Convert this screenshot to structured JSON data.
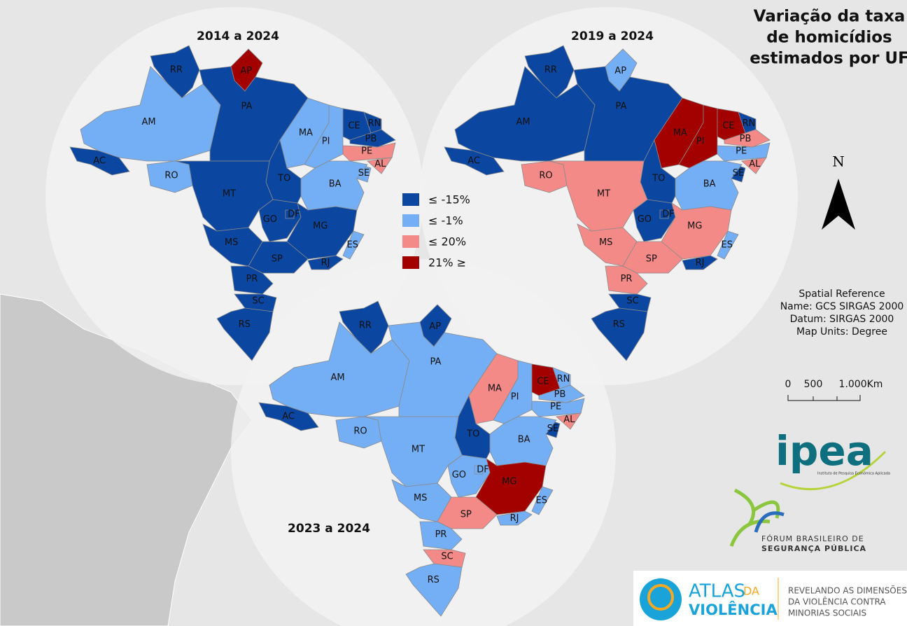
{
  "title_lines": [
    "Variação da taxa",
    "de homicídios",
    "estimados por UF"
  ],
  "legend": [
    {
      "label": "≤ -15%",
      "color": "#0b46a0"
    },
    {
      "label": "≤ -1%",
      "color": "#74aef5"
    },
    {
      "label": "≤ 20%",
      "color": "#f48a88"
    },
    {
      "label": "21% ≥",
      "color": "#a30000"
    }
  ],
  "states": [
    "RR",
    "AP",
    "AM",
    "AC",
    "PA",
    "MA",
    "PI",
    "CE",
    "RN",
    "PB",
    "PE",
    "AL",
    "SE",
    "BA",
    "TO",
    "RO",
    "MT",
    "GO",
    "DF",
    "MG",
    "ES",
    "MS",
    "SP",
    "RJ",
    "PR",
    "SC",
    "RS"
  ],
  "maps": [
    {
      "title": "2014 a 2024",
      "classes": [
        0,
        3,
        1,
        0,
        0,
        1,
        1,
        0,
        0,
        0,
        2,
        2,
        1,
        1,
        0,
        1,
        0,
        0,
        0,
        0,
        1,
        0,
        0,
        0,
        0,
        0,
        0
      ]
    },
    {
      "title": "2019 a 2024",
      "classes": [
        0,
        1,
        0,
        0,
        0,
        3,
        3,
        3,
        0,
        2,
        1,
        2,
        0,
        1,
        0,
        2,
        2,
        0,
        0,
        2,
        1,
        2,
        2,
        0,
        2,
        0,
        0
      ]
    },
    {
      "title": "2023 a 2024",
      "classes": [
        0,
        0,
        1,
        0,
        1,
        2,
        1,
        3,
        1,
        1,
        1,
        2,
        0,
        1,
        0,
        1,
        1,
        1,
        1,
        3,
        1,
        1,
        2,
        1,
        1,
        2,
        1
      ]
    }
  ],
  "north": "N",
  "spatial_reference": [
    "Spatial Reference",
    "Name: GCS SIRGAS 2000",
    "Datum: SIRGAS 2000",
    "Map Units: Degree"
  ],
  "scale": {
    "labels": [
      "0",
      "500",
      "1.000Km"
    ]
  },
  "logos": {
    "ipea": "ipea",
    "ipea_sub": "Instituto de Pesquisa Econômica Aplicada",
    "fbsp": [
      "FÓRUM BRASILEIRO DE",
      "SEGURANÇA PÚBLICA"
    ],
    "atlas": [
      "ATLAS",
      "DA",
      "VIOLÊNCIA"
    ],
    "atlas_tag": [
      "REVELANDO AS DIMENSÕES",
      "DA VIOLÊNCIA CONTRA",
      "MINORIAS SOCIAIS"
    ]
  }
}
